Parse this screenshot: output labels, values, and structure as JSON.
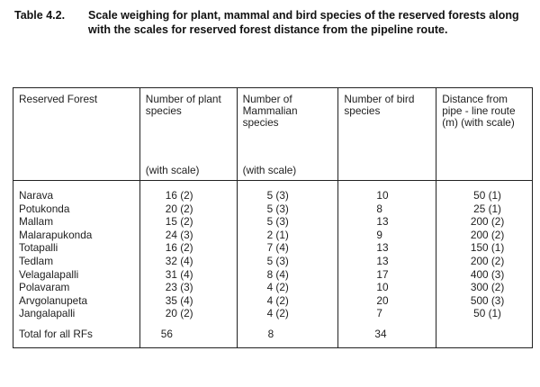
{
  "caption": {
    "label": "Table 4.2.",
    "text": "Scale weighing for plant, mammal and bird species of the reserved forests along with the scales for reserved forest distance from the pipeline route."
  },
  "table": {
    "headers": [
      {
        "top": "Reserved Forest",
        "bottom": ""
      },
      {
        "top": "Number of plant species",
        "bottom": "(with scale)"
      },
      {
        "top": "Number of Mammalian species",
        "bottom": "(with scale)"
      },
      {
        "top": "Number of bird species",
        "bottom": ""
      },
      {
        "top": "Distance from pipe - line route (m) (with scale)",
        "bottom": ""
      }
    ],
    "rows": [
      [
        "Narava",
        "16 (2)",
        "5 (3)",
        "10",
        "50 (1)"
      ],
      [
        "Potukonda",
        "20 (2)",
        "5 (3)",
        "8",
        "25 (1)"
      ],
      [
        "Mallam",
        "15 (2)",
        "5 (3)",
        "13",
        "200 (2)"
      ],
      [
        "Malarapukonda",
        "24 (3)",
        "2 (1)",
        "9",
        "200 (2)"
      ],
      [
        "Totapalli",
        "16 (2)",
        "7 (4)",
        "13",
        "150 (1)"
      ],
      [
        "Tedlam",
        "32 (4)",
        "5 (3)",
        "13",
        "200 (2)"
      ],
      [
        "Velagalapalli",
        "31 (4)",
        "8 (4)",
        "17",
        "400 (3)"
      ],
      [
        "Polavaram",
        "23 (3)",
        "4 (2)",
        "10",
        "300 (2)"
      ],
      [
        "Arvgolanupeta",
        "35 (4)",
        "4 (2)",
        "20",
        "500 (3)"
      ],
      [
        "Jangalapalli",
        "20 (2)",
        "4 (2)",
        "7",
        "50 (1)"
      ]
    ],
    "total": [
      "Total for all   RFs",
      "56",
      "8",
      "34",
      ""
    ]
  }
}
